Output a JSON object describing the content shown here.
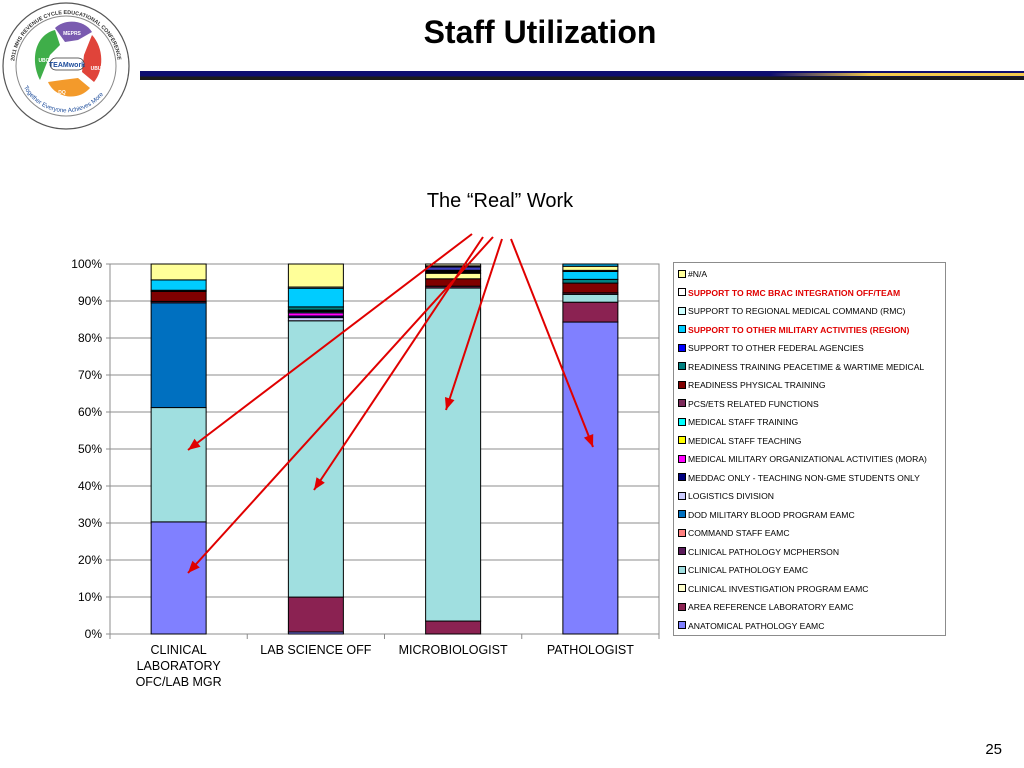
{
  "slide": {
    "title": "Staff Utilization",
    "page_number": "25",
    "logo": {
      "ring_text": "2011 MHS REVENUE CYCLE EDUCATIONAL CONFERENCE",
      "motto": "Together Everyone Achieves More",
      "center_text": "TEAMwork",
      "hand_labels": [
        "MEPRS",
        "UBO",
        "UBU",
        "DQ"
      ]
    }
  },
  "chart_data": {
    "type": "bar",
    "stacked": true,
    "percent": true,
    "title": "The “Real” Work",
    "categories": [
      "CLINICAL LABORATORY OFC/LAB MGR",
      "LAB SCIENCE OFF",
      "MICROBIOLOGIST",
      "PATHOLOGIST"
    ],
    "category_label_lines": [
      [
        "CLINICAL",
        "LABORATORY",
        "OFC/LAB MGR"
      ],
      [
        "LAB SCIENCE OFF"
      ],
      [
        "MICROBIOLOGIST"
      ],
      [
        "PATHOLOGIST"
      ]
    ],
    "ylim": [
      0,
      100
    ],
    "yticks": [
      "0%",
      "10%",
      "20%",
      "30%",
      "40%",
      "50%",
      "60%",
      "70%",
      "80%",
      "90%",
      "100%"
    ],
    "grid": true,
    "legend_position": "right",
    "series": [
      {
        "name": "ANATOMICAL PATHOLOGY EAMC",
        "color": "#8080ff",
        "values": [
          30.3,
          0.5,
          0,
          83.3
        ]
      },
      {
        "name": "AREA REFERENCE LABORATORY EAMC",
        "color": "#8b2252",
        "values": [
          0,
          8.8,
          3.5,
          5.3
        ]
      },
      {
        "name": "CLINICAL INVESTIGATION PROGRAM EAMC",
        "color": "#ffffcc",
        "values": [
          0,
          0,
          0,
          0
        ]
      },
      {
        "name": "CLINICAL PATHOLOGY EAMC",
        "color": "#a0dfe0",
        "values": [
          30.9,
          69.6,
          90.0,
          2.1
        ]
      },
      {
        "name": "CLINICAL PATHOLOGY MCPHERSON",
        "color": "#5a1a5a",
        "values": [
          0,
          0,
          0,
          0
        ]
      },
      {
        "name": "COMMAND STAFF EAMC",
        "color": "#ff8080",
        "values": [
          0,
          0,
          0,
          0
        ]
      },
      {
        "name": "DOD MILITARY BLOOD PROGRAM EAMC",
        "color": "#0070c0",
        "values": [
          28.3,
          0,
          0,
          0
        ]
      },
      {
        "name": "LOGISTICS DIVISION",
        "color": "#ccccff",
        "values": [
          0,
          0.8,
          0,
          0
        ]
      },
      {
        "name": "MEDDAC ONLY - TEACHING NON-GME STUDENTS ONLY",
        "color": "#000080",
        "values": [
          0,
          0.4,
          0,
          0
        ]
      },
      {
        "name": "MEDICAL MILITARY ORGANIZATIONAL ACTIVITIES (MORA)",
        "color": "#ff00ff",
        "values": [
          0,
          0.8,
          0,
          0
        ]
      },
      {
        "name": "MEDICAL STAFF TEACHING",
        "color": "#ffff00",
        "values": [
          0,
          0,
          0,
          0
        ]
      },
      {
        "name": "MEDICAL STAFF TRAINING",
        "color": "#00ffff",
        "values": [
          0,
          0.3,
          0,
          0
        ]
      },
      {
        "name": "PCS/ETS RELATED FUNCTIONS",
        "color": "#7b2a5a",
        "values": [
          0.4,
          0.2,
          0.5,
          0.4
        ]
      },
      {
        "name": "READINESS PHYSICAL TRAINING",
        "color": "#800000",
        "values": [
          2.7,
          0.2,
          2.0,
          2.6
        ]
      },
      {
        "name": "READINESS TRAINING PEACETIME & WARTIME MEDICAL",
        "color": "#008080",
        "values": [
          0.3,
          0.8,
          0,
          1.0
        ]
      },
      {
        "name": "SUPPORT TO OTHER FEDERAL AGENCIES",
        "color": "#0000ff",
        "values": [
          0,
          0,
          0,
          0
        ]
      },
      {
        "name": "SUPPORT TO OTHER MILITARY ACTIVITIES (REGION)",
        "color": "#00ccff",
        "values": [
          2.8,
          4.7,
          0,
          2.1
        ]
      },
      {
        "name": "SUPPORT TO REGIONAL MEDICAL COMMAND (RMC)",
        "color": "#ccffff",
        "values": [
          0,
          0,
          0,
          0
        ]
      },
      {
        "name": "SUPPORT TO RMC BRAC INTEGRATION OFF/TEAM",
        "color": "#ffffff",
        "values": [
          0,
          0.3,
          0,
          0.3
        ]
      },
      {
        "name": "#N/A",
        "color": "#ffff99",
        "values": [
          4.3,
          5.8,
          1.5,
          1.1
        ]
      },
      {
        "name": "",
        "color": "#00b0f0",
        "values": [
          0,
          0,
          0,
          0.6
        ]
      },
      {
        "name": "",
        "color": "#000000",
        "values": [
          0,
          0,
          0.8,
          0
        ]
      },
      {
        "name": "",
        "color": "#4040c0",
        "values": [
          0,
          0,
          0.9,
          0
        ]
      },
      {
        "name": "",
        "color": "#8080ff",
        "values": [
          0,
          0,
          0.3,
          0
        ]
      },
      {
        "name": "",
        "color": "#ffffcc",
        "values": [
          0,
          0,
          0.5,
          0
        ]
      }
    ],
    "legend_order": [
      "#N/A",
      "SUPPORT TO RMC BRAC INTEGRATION OFF/TEAM",
      "SUPPORT TO REGIONAL MEDICAL COMMAND (RMC)",
      "SUPPORT TO OTHER MILITARY ACTIVITIES (REGION)",
      "SUPPORT TO OTHER FEDERAL AGENCIES",
      "READINESS TRAINING PEACETIME & WARTIME MEDICAL",
      "READINESS PHYSICAL TRAINING",
      "PCS/ETS RELATED FUNCTIONS",
      "MEDICAL STAFF TRAINING",
      "MEDICAL STAFF TEACHING",
      "MEDICAL MILITARY ORGANIZATIONAL ACTIVITIES (MORA)",
      "MEDDAC ONLY - TEACHING NON-GME STUDENTS ONLY",
      "LOGISTICS DIVISION",
      "DOD MILITARY BLOOD PROGRAM EAMC",
      "COMMAND STAFF EAMC",
      "CLINICAL PATHOLOGY MCPHERSON",
      "CLINICAL PATHOLOGY EAMC",
      "CLINICAL INVESTIGATION PROGRAM EAMC",
      "AREA REFERENCE LABORATORY EAMC",
      "ANATOMICAL PATHOLOGY EAMC"
    ],
    "legend_highlighted": [
      "SUPPORT TO RMC BRAC INTEGRATION OFF/TEAM",
      "SUPPORT TO OTHER MILITARY ACTIVITIES (REGION)"
    ],
    "annotation_arrow_color": "#e00000"
  }
}
